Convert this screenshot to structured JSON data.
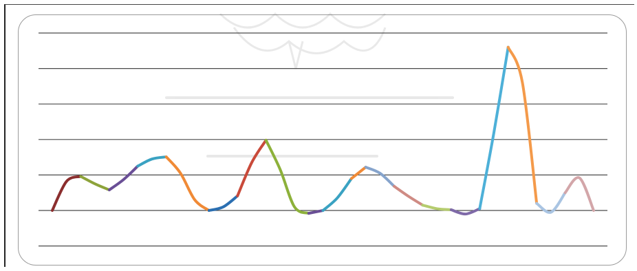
{
  "chart_data": {
    "type": "line",
    "title": "",
    "xlabel": "",
    "ylabel": "",
    "ylim": [
      0,
      5
    ],
    "grid": true,
    "legend": "none",
    "series": [
      {
        "color": "#8b2e2e",
        "x": [
          0,
          1,
          2
        ],
        "y": [
          0.0,
          0.82,
          0.96
        ]
      },
      {
        "color": "#8da33a",
        "x": [
          2,
          3,
          4
        ],
        "y": [
          0.96,
          0.75,
          0.58
        ]
      },
      {
        "color": "#6a4f96",
        "x": [
          4,
          5,
          6
        ],
        "y": [
          0.58,
          0.87,
          1.25
        ]
      },
      {
        "color": "#3aa2c2",
        "x": [
          6,
          7,
          8
        ],
        "y": [
          1.25,
          1.45,
          1.51
        ]
      },
      {
        "color": "#f08a36",
        "x": [
          8,
          9,
          10,
          11
        ],
        "y": [
          1.51,
          1.05,
          0.3,
          0.0
        ]
      },
      {
        "color": "#2b6fb1",
        "x": [
          11,
          12,
          13
        ],
        "y": [
          0.0,
          0.1,
          0.41
        ]
      },
      {
        "color": "#c94a3a",
        "x": [
          13,
          14,
          15
        ],
        "y": [
          0.41,
          1.35,
          1.98
        ]
      },
      {
        "color": "#8db13a",
        "x": [
          15,
          16,
          17,
          18
        ],
        "y": [
          1.98,
          1.15,
          0.1,
          -0.08
        ]
      },
      {
        "color": "#6a4f96",
        "x": [
          18,
          19
        ],
        "y": [
          -0.08,
          0.0
        ]
      },
      {
        "color": "#3aa2c2",
        "x": [
          19,
          20,
          21
        ],
        "y": [
          0.0,
          0.35,
          0.9
        ]
      },
      {
        "color": "#f08a36",
        "x": [
          21,
          22
        ],
        "y": [
          0.9,
          1.22
        ]
      },
      {
        "color": "#86a4cc",
        "x": [
          22,
          23,
          24
        ],
        "y": [
          1.22,
          1.05,
          0.68
        ]
      },
      {
        "color": "#cf8b84",
        "x": [
          24,
          25,
          26
        ],
        "y": [
          0.68,
          0.4,
          0.15
        ]
      },
      {
        "color": "#b5cc6e",
        "x": [
          26,
          27,
          28
        ],
        "y": [
          0.15,
          0.05,
          0.02
        ]
      },
      {
        "color": "#7f6aa8",
        "x": [
          28,
          29,
          30
        ],
        "y": [
          0.02,
          -0.1,
          0.05
        ]
      },
      {
        "color": "#4db0d8",
        "x": [
          30,
          31,
          32
        ],
        "y": [
          0.05,
          2.2,
          4.6
        ]
      },
      {
        "color": "#f49a4a",
        "x": [
          32,
          33,
          34
        ],
        "y": [
          4.6,
          3.6,
          0.2
        ]
      },
      {
        "color": "#a9c4e2",
        "x": [
          34,
          35,
          36
        ],
        "y": [
          0.2,
          -0.05,
          0.5
        ]
      },
      {
        "color": "#d3a6a9",
        "x": [
          36,
          37,
          38
        ],
        "y": [
          0.5,
          0.92,
          0.0
        ]
      }
    ]
  }
}
